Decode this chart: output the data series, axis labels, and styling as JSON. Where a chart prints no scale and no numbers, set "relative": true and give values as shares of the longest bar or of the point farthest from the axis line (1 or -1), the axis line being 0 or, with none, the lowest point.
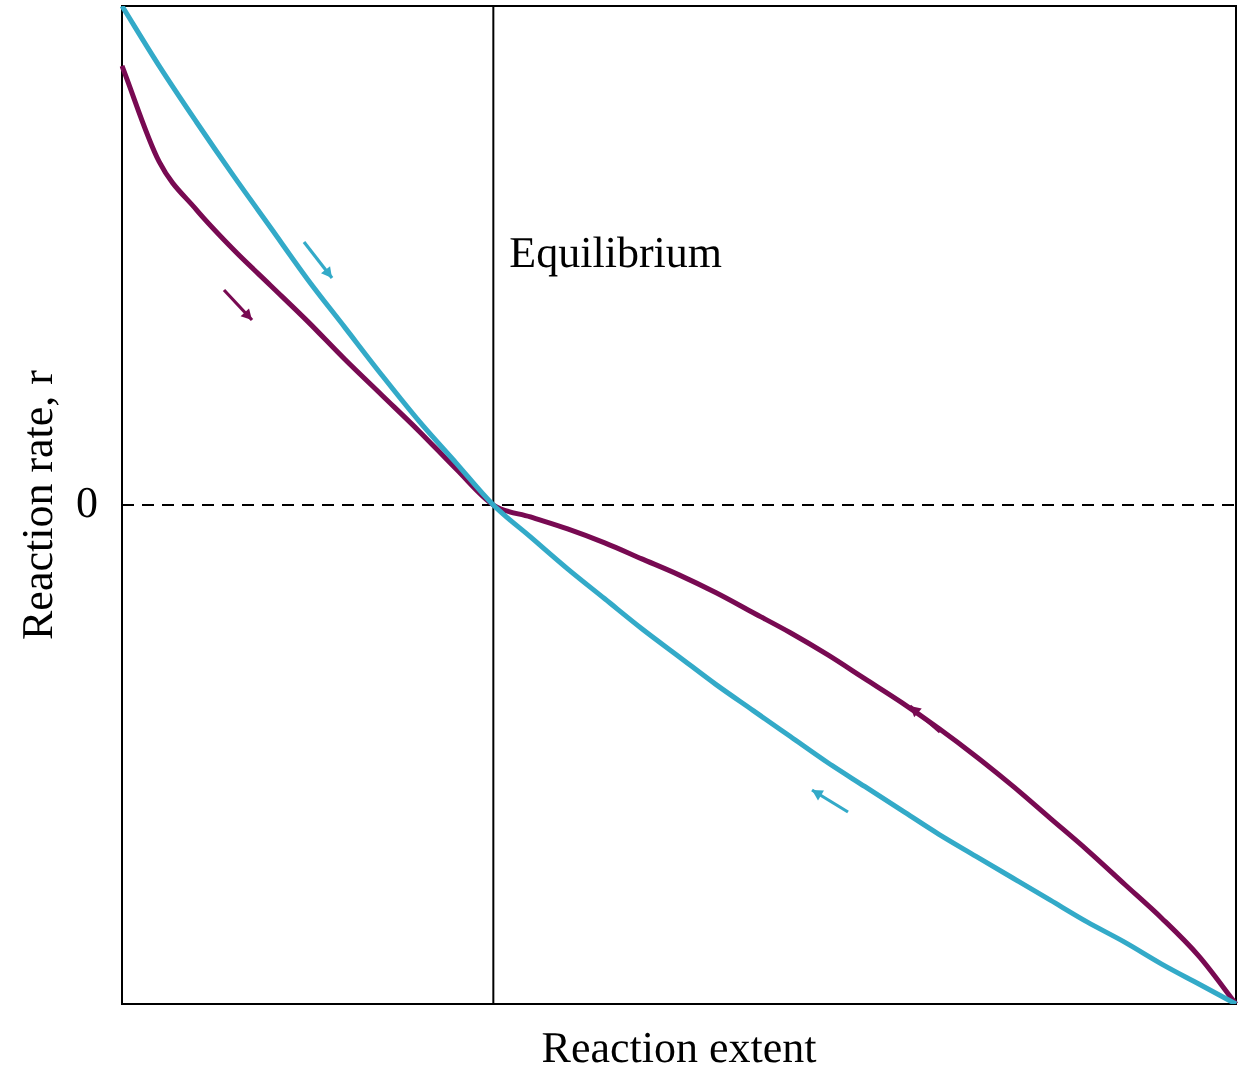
{
  "chart_data": {
    "type": "line",
    "relative": true,
    "xlabel": "Reaction extent",
    "ylabel": "Reaction rate, r",
    "legend": false,
    "grid": false,
    "marker": "none",
    "categories": [
      null,
      null,
      null,
      null,
      null,
      null,
      null,
      null,
      null,
      null,
      null,
      null,
      null,
      null,
      null,
      null,
      null,
      null,
      null,
      null,
      null,
      null,
      null,
      null,
      null,
      null,
      null,
      null,
      null,
      null,
      null
    ],
    "series": [
      {
        "color": "#33aac8",
        "values": [
          1,
          0.88,
          0.768,
          0.66,
          0.556,
          0.452,
          0.356,
          0.26,
          0.168,
          0.084,
          0,
          -0.064,
          -0.128,
          -0.188,
          -0.248,
          -0.304,
          -0.36,
          -0.412,
          -0.464,
          -0.516,
          -0.564,
          -0.612,
          -0.66,
          -0.704,
          -0.748,
          -0.792,
          -0.836,
          -0.876,
          -0.92,
          -0.96,
          -1
        ]
      },
      {
        "color": "#780a52",
        "values": [
          0.88,
          0.688,
          0.592,
          0.512,
          0.44,
          0.368,
          0.292,
          0.22,
          0.148,
          0.072,
          0,
          -0.024,
          -0.048,
          -0.076,
          -0.108,
          -0.14,
          -0.176,
          -0.216,
          -0.256,
          -0.3,
          -0.348,
          -0.396,
          -0.448,
          -0.504,
          -0.564,
          -0.628,
          -0.692,
          -0.76,
          -0.828,
          -0.904,
          -1
        ]
      }
    ],
    "ref_lines": [
      {
        "axis": "y",
        "value": 0,
        "label": "0",
        "line_style": "dashed"
      }
    ],
    "annotations": [
      "Equilibrium"
    ]
  }
}
